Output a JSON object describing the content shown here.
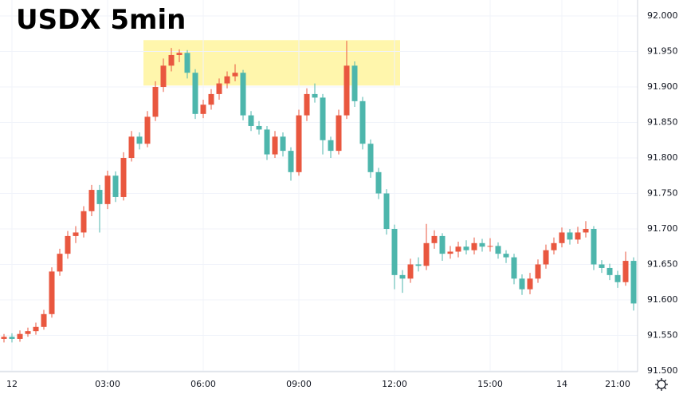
{
  "chart_data": {
    "type": "candlestick",
    "title": "USDX 5min",
    "categories": [
      null,
      "12",
      null,
      null,
      null,
      null,
      null,
      null,
      null,
      null,
      null,
      null,
      null,
      "03:00",
      null,
      null,
      null,
      null,
      null,
      null,
      null,
      null,
      null,
      null,
      null,
      "06:00",
      null,
      null,
      null,
      null,
      null,
      null,
      null,
      null,
      null,
      null,
      null,
      "09:00",
      null,
      null,
      null,
      null,
      null,
      null,
      null,
      null,
      null,
      null,
      null,
      "12:00",
      null,
      null,
      null,
      null,
      null,
      null,
      null,
      null,
      null,
      null,
      null,
      "15:00",
      null,
      null,
      null,
      null,
      null,
      null,
      null,
      null,
      "14",
      null,
      null,
      null,
      null,
      null,
      null,
      "21:00",
      null,
      null
    ],
    "open": [
      91.545,
      91.548,
      91.545,
      91.552,
      91.556,
      91.562,
      91.58,
      91.64,
      91.665,
      91.69,
      91.695,
      91.725,
      91.755,
      91.735,
      91.775,
      91.745,
      91.8,
      91.83,
      91.82,
      91.858,
      91.9,
      91.93,
      91.945,
      91.948,
      91.92,
      91.862,
      91.875,
      91.89,
      91.905,
      91.915,
      91.92,
      91.86,
      91.845,
      91.84,
      91.805,
      91.83,
      91.81,
      91.78,
      91.86,
      91.89,
      91.885,
      91.825,
      91.81,
      91.86,
      91.93,
      91.88,
      91.82,
      91.78,
      91.75,
      91.7,
      91.635,
      91.63,
      91.65,
      91.648,
      91.68,
      91.69,
      91.665,
      91.668,
      91.675,
      91.67,
      91.68,
      91.675,
      91.676,
      91.665,
      91.66,
      91.63,
      91.615,
      91.63,
      91.65,
      91.67,
      91.68,
      91.695,
      91.685,
      91.695,
      91.7,
      91.65,
      91.645,
      91.635,
      91.625,
      91.655
    ],
    "high": [
      91.552,
      91.553,
      91.557,
      91.561,
      91.568,
      91.586,
      91.646,
      91.672,
      91.697,
      91.704,
      91.732,
      91.762,
      91.762,
      91.782,
      91.781,
      91.808,
      91.838,
      91.836,
      91.866,
      91.908,
      91.94,
      91.955,
      91.953,
      91.952,
      91.925,
      91.882,
      91.897,
      91.912,
      91.922,
      91.932,
      91.924,
      91.866,
      91.852,
      91.845,
      91.838,
      91.836,
      91.815,
      91.868,
      91.898,
      91.905,
      91.89,
      91.83,
      91.868,
      91.965,
      91.936,
      91.886,
      91.826,
      91.786,
      91.756,
      91.706,
      91.642,
      91.658,
      91.66,
      91.707,
      91.698,
      91.694,
      91.676,
      91.682,
      91.684,
      91.688,
      91.686,
      91.687,
      91.681,
      91.67,
      91.665,
      91.636,
      91.638,
      91.657,
      91.678,
      91.688,
      91.702,
      91.7,
      91.703,
      91.711,
      91.704,
      91.656,
      91.651,
      91.641,
      91.668,
      91.66
    ],
    "low": [
      91.54,
      91.54,
      91.541,
      91.548,
      91.551,
      91.558,
      91.575,
      91.634,
      91.658,
      91.68,
      91.688,
      91.718,
      91.695,
      91.728,
      91.738,
      91.74,
      91.795,
      91.812,
      91.815,
      91.852,
      91.893,
      91.922,
      91.935,
      91.912,
      91.855,
      91.856,
      91.868,
      91.882,
      91.898,
      91.908,
      91.853,
      91.838,
      91.833,
      91.797,
      91.8,
      91.802,
      91.768,
      91.775,
      91.852,
      91.878,
      91.805,
      91.8,
      91.805,
      91.855,
      91.872,
      91.812,
      91.772,
      91.742,
      91.692,
      91.615,
      91.61,
      91.624,
      91.64,
      91.642,
      91.672,
      91.655,
      91.658,
      91.66,
      91.664,
      91.664,
      91.668,
      91.668,
      91.658,
      91.652,
      91.622,
      91.607,
      91.608,
      91.624,
      91.644,
      91.664,
      91.674,
      91.678,
      91.679,
      91.688,
      91.642,
      91.638,
      91.628,
      91.617,
      91.62,
      91.585
    ],
    "close": [
      91.548,
      91.545,
      91.552,
      91.556,
      91.562,
      91.58,
      91.64,
      91.665,
      91.69,
      91.695,
      91.725,
      91.755,
      91.735,
      91.775,
      91.745,
      91.8,
      91.83,
      91.82,
      91.858,
      91.9,
      91.93,
      91.945,
      91.948,
      91.92,
      91.862,
      91.875,
      91.89,
      91.905,
      91.915,
      91.92,
      91.86,
      91.845,
      91.84,
      91.805,
      91.83,
      91.81,
      91.78,
      91.86,
      91.89,
      91.885,
      91.825,
      91.81,
      91.86,
      91.93,
      91.88,
      91.82,
      91.78,
      91.75,
      91.7,
      91.635,
      91.63,
      91.65,
      91.648,
      91.68,
      91.69,
      91.665,
      91.668,
      91.675,
      91.67,
      91.68,
      91.675,
      91.676,
      91.665,
      91.66,
      91.63,
      91.615,
      91.63,
      91.65,
      91.67,
      91.68,
      91.695,
      91.685,
      91.695,
      91.7,
      91.65,
      91.645,
      91.635,
      91.625,
      91.655,
      91.595
    ],
    "up_color": "#e9573f",
    "down_color": "#4db6ac",
    "highlight_range": [
      91.902,
      91.966
    ],
    "highlight_color": "#fff59d",
    "ylim": [
      91.5,
      92.0225
    ],
    "yticks": [
      {
        "value": 91.5,
        "label": "91.500"
      },
      {
        "value": 91.55,
        "label": "91.550"
      },
      {
        "value": 91.6,
        "label": "91.600"
      },
      {
        "value": 91.65,
        "label": "91.650"
      },
      {
        "value": 91.7,
        "label": "91.700"
      },
      {
        "value": 91.75,
        "label": "91.750"
      },
      {
        "value": 91.8,
        "label": "91.800"
      },
      {
        "value": 91.85,
        "label": "91.850"
      },
      {
        "value": 91.9,
        "label": "91.900"
      },
      {
        "value": 91.95,
        "label": "91.950"
      },
      {
        "value": 92.0,
        "label": "92.000"
      }
    ],
    "grid": true
  }
}
